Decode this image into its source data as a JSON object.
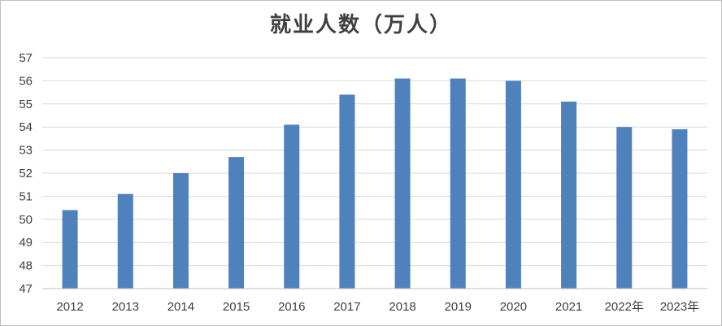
{
  "chart_data": {
    "type": "bar",
    "title": "就业人数（万人）",
    "xlabel": "",
    "ylabel": "",
    "categories": [
      "2012",
      "2013",
      "2014",
      "2015",
      "2016",
      "2017",
      "2018",
      "2019",
      "2020",
      "2021",
      "2022年",
      "2023年"
    ],
    "values": [
      50.4,
      51.1,
      52.0,
      52.7,
      54.1,
      55.4,
      56.1,
      56.1,
      56.0,
      55.1,
      54.0,
      53.9
    ],
    "ylim": [
      47,
      57
    ],
    "yticks": [
      47,
      48,
      49,
      50,
      51,
      52,
      53,
      54,
      55,
      56,
      57
    ],
    "bar_color": "#4f81bd",
    "grid": true,
    "legend": "none"
  }
}
